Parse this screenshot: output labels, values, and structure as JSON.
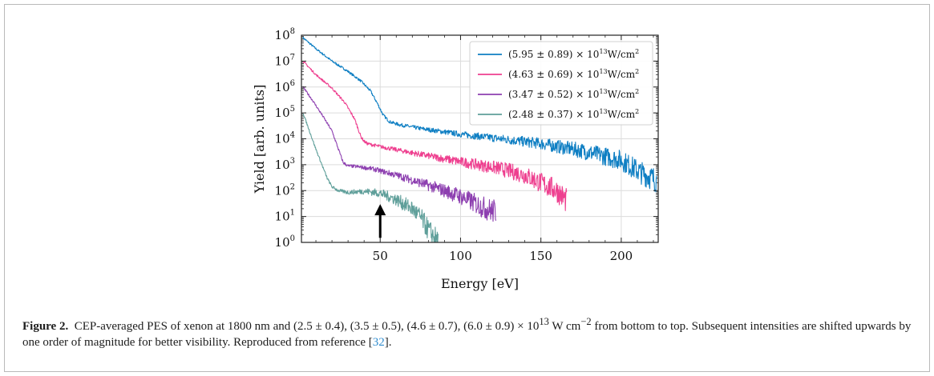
{
  "chart_data": {
    "type": "line",
    "xlabel": "Energy [eV]",
    "ylabel": "Yield [arb. units]",
    "xlim": [
      1,
      223
    ],
    "ylim": [
      1,
      100000000
    ],
    "yscale": "log",
    "grid": true,
    "legend_placement": "top-right",
    "x_ticks": [
      50,
      100,
      150,
      200
    ],
    "y_ticks": [
      1,
      10,
      100,
      1000,
      10000,
      100000,
      1000000,
      10000000,
      100000000
    ],
    "y_tick_exponents": [
      "0",
      "1",
      "2",
      "3",
      "4",
      "5",
      "6",
      "7",
      "8"
    ],
    "annotation": "arrow at 50 eV",
    "arrow_x": 50,
    "arrow_tip_y": 30,
    "arrow_tail_y": 1.5,
    "series": [
      {
        "name": "(5.95 ± 0.89) × 10¹³W/cm²",
        "label_parts": [
          "(5.95 ± 0.89) × 10",
          "13",
          "W/cm",
          "2"
        ],
        "color": "#0f7fc3",
        "x": [
          2,
          10,
          20,
          30,
          38,
          44,
          48,
          52,
          56,
          62,
          75,
          100,
          125,
          150,
          175,
          200,
          212,
          222
        ],
        "y": [
          80000000,
          30000000,
          10000000,
          4000000,
          1700000,
          700000,
          250000,
          80000,
          45000,
          35000,
          25000,
          15000,
          10000,
          6500,
          3500,
          1500,
          500,
          250
        ]
      },
      {
        "name": "(4.63 ± 0.69) × 10¹³W/cm²",
        "label_parts": [
          "(4.63 ± 0.69) × 10",
          "13",
          "W/cm",
          "2"
        ],
        "color": "#ee3f8f",
        "x": [
          2,
          10,
          20,
          28,
          34,
          38,
          40,
          42,
          50,
          75,
          100,
          125,
          140,
          150,
          160,
          166
        ],
        "y": [
          10000000,
          3000000,
          900000,
          250000,
          60000,
          12000,
          8000,
          6500,
          5000,
          2500,
          1300,
          700,
          400,
          200,
          100,
          40
        ]
      },
      {
        "name": "(3.47 ± 0.52) × 10¹³W/cm²",
        "label_parts": [
          "(3.47 ± 0.52) × 10",
          "13",
          "W/cm",
          "2"
        ],
        "color": "#8d3fb0",
        "x": [
          2,
          8,
          14,
          20,
          24,
          27,
          30,
          35,
          45,
          60,
          75,
          90,
          100,
          110,
          116,
          122
        ],
        "y": [
          1000000,
          300000,
          80000,
          20000,
          4000,
          1200,
          900,
          850,
          700,
          400,
          200,
          100,
          60,
          30,
          20,
          15
        ]
      },
      {
        "name": "(2.48 ± 0.37) × 10¹³W/cm²",
        "label_parts": [
          "(2.48 ± 0.37) × 10",
          "13",
          "W/cm",
          "2"
        ],
        "color": "#5f9f9a",
        "x": [
          2,
          6,
          10,
          14,
          17,
          20,
          24,
          30,
          40,
          50,
          60,
          70,
          76,
          80,
          84,
          86
        ],
        "y": [
          100000,
          20000,
          4000,
          900,
          300,
          140,
          100,
          85,
          95,
          80,
          45,
          20,
          8,
          3,
          1.5,
          1
        ]
      }
    ]
  },
  "caption": {
    "label": "Figure 2.",
    "text": "CEP-averaged PES of xenon at 1800 nm and (2.5 ± 0.4), (3.5 ± 0.5), (4.6 ± 0.7), (6.0 ± 0.9) × 10",
    "exponent": "13",
    "unit": " W cm",
    "unit_exponent": "−2",
    "text2": " from bottom to top. Subsequent intensities are shifted upwards by one order of magnitude for better visibility. Reproduced from reference [",
    "ref": "32",
    "end": "]."
  }
}
